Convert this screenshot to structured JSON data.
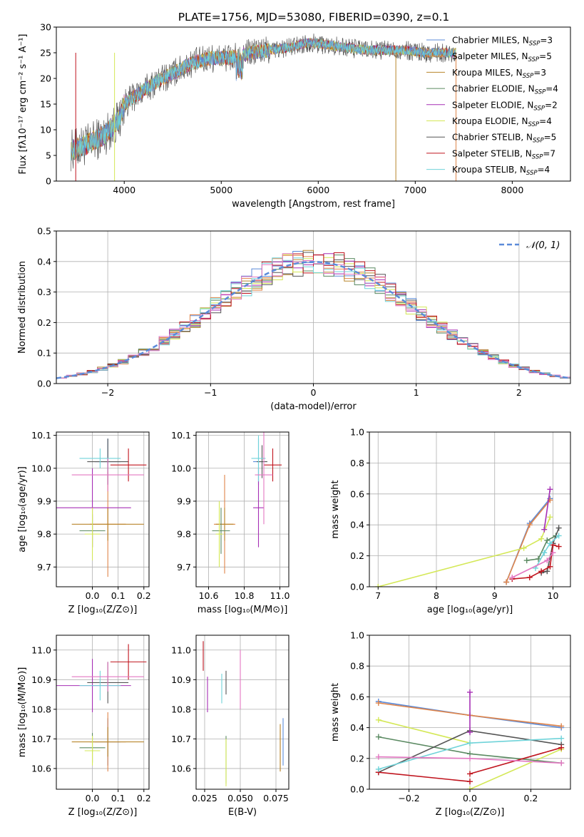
{
  "title": "PLATE=1756, MJD=53080, FIBERID=0390, z=0.1",
  "colors": {
    "chab_miles": "#5b8bd9",
    "salp_miles": "#e0854a",
    "krou_miles": "#b8862b",
    "chab_elodie": "#5b8a62",
    "salp_elodie": "#a62fb5",
    "krou_elodie": "#d4e857",
    "chab_stelib": "#555555",
    "salp_stelib": "#c0141e",
    "krou_stelib": "#6fd3d9",
    "pink": "#e377c2"
  },
  "chart_data": [
    {
      "id": "spectrum",
      "type": "line",
      "xlabel": "wavelength [Angstrom, rest frame]",
      "ylabel": "Flux [fλ10⁻¹⁷ erg cm⁻² s⁻¹ A⁻¹]",
      "xlim": [
        3300,
        8600
      ],
      "ylim": [
        0,
        30
      ],
      "xticks": [
        "4000",
        "5000",
        "6000",
        "7000",
        "8000"
      ],
      "yticks": [
        "0",
        "5",
        "10",
        "15",
        "20",
        "25",
        "30"
      ],
      "continuum": [
        [
          3450,
          6
        ],
        [
          3600,
          7
        ],
        [
          3800,
          9
        ],
        [
          3950,
          12
        ],
        [
          4000,
          15
        ],
        [
          4150,
          17
        ],
        [
          4300,
          19
        ],
        [
          4500,
          21
        ],
        [
          4700,
          23
        ],
        [
          4900,
          24
        ],
        [
          5100,
          24
        ],
        [
          5300,
          25
        ],
        [
          5500,
          25.5
        ],
        [
          5700,
          26
        ],
        [
          5900,
          27
        ],
        [
          6100,
          26.5
        ],
        [
          6300,
          26
        ],
        [
          6500,
          25.5
        ],
        [
          6700,
          25.5
        ],
        [
          6900,
          25.5
        ],
        [
          7100,
          25
        ],
        [
          7300,
          25
        ],
        [
          7420,
          25
        ]
      ],
      "legend": [
        {
          "label": "Chabrier MILES, N",
          "sub": "SSP",
          "tail": "=3",
          "color": "chab_miles"
        },
        {
          "label": "Salpeter MILES, N",
          "sub": "SSP",
          "tail": "=5",
          "color": "salp_miles"
        },
        {
          "label": "Kroupa MILES, N",
          "sub": "SSP",
          "tail": "=3",
          "color": "krou_miles"
        },
        {
          "label": "Chabrier ELODIE, N",
          "sub": "SSP",
          "tail": "=4",
          "color": "chab_elodie"
        },
        {
          "label": "Salpeter ELODIE, N",
          "sub": "SSP",
          "tail": "=2",
          "color": "salp_elodie"
        },
        {
          "label": "Kroupa ELODIE, N",
          "sub": "SSP",
          "tail": "=4",
          "color": "krou_elodie"
        },
        {
          "label": "Chabrier STELIB, N",
          "sub": "SSP",
          "tail": "=5",
          "color": "chab_stelib"
        },
        {
          "label": "Salpeter STELIB, N",
          "sub": "SSP",
          "tail": "=7",
          "color": "salp_stelib"
        },
        {
          "label": "Kroupa STELIB, N",
          "sub": "SSP",
          "tail": "=4",
          "color": "krou_stelib"
        }
      ]
    },
    {
      "id": "residuals",
      "type": "bar",
      "xlabel": "(data-model)/error",
      "ylabel": "Normed distribution",
      "xlim": [
        -2.5,
        2.5
      ],
      "ylim": [
        0,
        0.5
      ],
      "xticks": [
        "−2",
        "−1",
        "0",
        "1",
        "2"
      ],
      "yticks": [
        "0.0",
        "0.1",
        "0.2",
        "0.3",
        "0.4",
        "0.5"
      ],
      "legend": "𝒩(0, 1)",
      "grid": true
    },
    {
      "id": "age_vs_Z",
      "type": "scatter",
      "xlabel": "Z [log₁₀(Z/Z⊙)]",
      "ylabel": "age  [log₁₀(age/yr)]",
      "xlim": [
        -0.14,
        0.22
      ],
      "ylim": [
        9.64,
        10.11
      ],
      "xticks": [
        "0.0",
        "0.1",
        "0.2"
      ],
      "yticks": [
        "9.7",
        "9.8",
        "9.9",
        "10.0",
        "10.1"
      ],
      "points": [
        {
          "x": 0.06,
          "y": 10.02,
          "xerr": 0.05,
          "yerr": 0.07,
          "c": "chab_miles"
        },
        {
          "x": 0.06,
          "y": 9.83,
          "xerr": 0.07,
          "yerr": 0.16,
          "c": "salp_miles"
        },
        {
          "x": 0.06,
          "y": 9.83,
          "xerr": 0.14,
          "yerr": 0.05,
          "c": "krou_miles"
        },
        {
          "x": 0.0,
          "y": 9.81,
          "xerr": 0.05,
          "yerr": 0.05,
          "c": "chab_elodie"
        },
        {
          "x": 0.0,
          "y": 9.88,
          "xerr": 0.15,
          "yerr": 0.12,
          "c": "salp_elodie"
        },
        {
          "x": 0.0,
          "y": 9.8,
          "xerr": 0.03,
          "yerr": 0.08,
          "c": "krou_elodie"
        },
        {
          "x": 0.06,
          "y": 10.02,
          "xerr": 0.08,
          "yerr": 0.07,
          "c": "chab_stelib"
        },
        {
          "x": 0.14,
          "y": 10.01,
          "xerr": 0.07,
          "yerr": 0.05,
          "c": "salp_stelib"
        },
        {
          "x": 0.03,
          "y": 10.03,
          "xerr": 0.08,
          "yerr": 0.03,
          "c": "krou_stelib"
        },
        {
          "x": 0.06,
          "y": 9.98,
          "xerr": 0.14,
          "yerr": 0.05,
          "c": "pink"
        }
      ]
    },
    {
      "id": "age_vs_mass",
      "type": "scatter",
      "xlabel": "mass [log₁₀(M/M⊙)]",
      "ylabel": "",
      "xlim": [
        10.53,
        11.05
      ],
      "ylim": [
        9.64,
        10.11
      ],
      "xticks": [
        "10.6",
        "10.8",
        "11.0"
      ],
      "yticks": [
        "9.7",
        "9.8",
        "9.9",
        "10.0",
        "10.1"
      ],
      "points": [
        {
          "x": 10.88,
          "y": 10.02,
          "xerr": 0.03,
          "yerr": 0.07,
          "c": "chab_miles"
        },
        {
          "x": 10.69,
          "y": 9.83,
          "xerr": 0.06,
          "yerr": 0.15,
          "c": "salp_miles"
        },
        {
          "x": 10.69,
          "y": 9.83,
          "xerr": 0.05,
          "yerr": 0.05,
          "c": "krou_miles"
        },
        {
          "x": 10.67,
          "y": 9.81,
          "xerr": 0.05,
          "yerr": 0.07,
          "c": "chab_elodie"
        },
        {
          "x": 10.88,
          "y": 9.88,
          "xerr": 0.03,
          "yerr": 0.12,
          "c": "salp_elodie"
        },
        {
          "x": 10.66,
          "y": 9.8,
          "xerr": 0.02,
          "yerr": 0.1,
          "c": "krou_elodie"
        },
        {
          "x": 10.9,
          "y": 10.02,
          "xerr": 0.03,
          "yerr": 0.05,
          "c": "chab_stelib"
        },
        {
          "x": 10.96,
          "y": 10.01,
          "xerr": 0.05,
          "yerr": 0.05,
          "c": "salp_stelib"
        },
        {
          "x": 10.88,
          "y": 10.03,
          "xerr": 0.04,
          "yerr": 0.07,
          "c": "krou_stelib"
        },
        {
          "x": 10.91,
          "y": 9.98,
          "xerr": 0.05,
          "yerr": 0.15,
          "c": "pink"
        }
      ]
    },
    {
      "id": "mass_vs_Z",
      "type": "scatter",
      "xlabel": "Z [log₁₀(Z/Z⊙)]",
      "ylabel": "mass [log₁₀(M/M⊙)]",
      "xlim": [
        -0.14,
        0.22
      ],
      "ylim": [
        10.53,
        11.05
      ],
      "xticks": [
        "0.0",
        "0.1",
        "0.2"
      ],
      "yticks": [
        "10.6",
        "10.7",
        "10.8",
        "10.9",
        "11.0"
      ],
      "points": [
        {
          "x": 0.06,
          "y": 10.69,
          "xerr": 0.05,
          "yerr": 0.08,
          "c": "chab_miles"
        },
        {
          "x": 0.06,
          "y": 10.69,
          "xerr": 0.07,
          "yerr": 0.1,
          "c": "salp_miles"
        },
        {
          "x": 0.06,
          "y": 10.69,
          "xerr": 0.14,
          "yerr": 0.05,
          "c": "krou_miles"
        },
        {
          "x": 0.0,
          "y": 10.67,
          "xerr": 0.05,
          "yerr": 0.05,
          "c": "chab_elodie"
        },
        {
          "x": 0.0,
          "y": 10.88,
          "xerr": 0.15,
          "yerr": 0.09,
          "c": "salp_elodie"
        },
        {
          "x": 0.0,
          "y": 10.66,
          "xerr": 0.03,
          "yerr": 0.05,
          "c": "krou_elodie"
        },
        {
          "x": 0.06,
          "y": 10.89,
          "xerr": 0.08,
          "yerr": 0.07,
          "c": "chab_stelib"
        },
        {
          "x": 0.14,
          "y": 10.96,
          "xerr": 0.07,
          "yerr": 0.06,
          "c": "salp_stelib"
        },
        {
          "x": 0.03,
          "y": 10.88,
          "xerr": 0.08,
          "yerr": 0.05,
          "c": "krou_stelib"
        },
        {
          "x": 0.06,
          "y": 10.91,
          "xerr": 0.14,
          "yerr": 0.05,
          "c": "pink"
        }
      ]
    },
    {
      "id": "mass_vs_ebv",
      "type": "scatter",
      "xlabel": "E(B-V)",
      "ylabel": "",
      "xlim": [
        0.019,
        0.084
      ],
      "ylim": [
        10.53,
        11.05
      ],
      "xticks": [
        "0.025",
        "0.050",
        "0.075"
      ],
      "yticks": [
        "10.6",
        "10.7",
        "10.8",
        "10.9",
        "11.0"
      ],
      "points": [
        {
          "x": 0.08,
          "y": 10.69,
          "yerr": 0.08,
          "c": "chab_miles"
        },
        {
          "x": 0.078,
          "y": 10.66,
          "yerr": 0.07,
          "c": "salp_miles"
        },
        {
          "x": 0.078,
          "y": 10.67,
          "yerr": 0.08,
          "c": "krou_miles"
        },
        {
          "x": 0.04,
          "y": 10.63,
          "yerr": 0.08,
          "c": "chab_elodie"
        },
        {
          "x": 0.027,
          "y": 10.85,
          "yerr": 0.06,
          "c": "salp_elodie"
        },
        {
          "x": 0.04,
          "y": 10.62,
          "yerr": 0.08,
          "c": "krou_elodie"
        },
        {
          "x": 0.04,
          "y": 10.89,
          "yerr": 0.04,
          "c": "chab_stelib"
        },
        {
          "x": 0.024,
          "y": 10.98,
          "yerr": 0.05,
          "c": "salp_stelib"
        },
        {
          "x": 0.037,
          "y": 10.87,
          "yerr": 0.05,
          "c": "krou_stelib"
        },
        {
          "x": 0.05,
          "y": 10.9,
          "yerr": 0.1,
          "c": "pink"
        }
      ]
    },
    {
      "id": "weight_vs_age",
      "type": "line",
      "xlabel": "age  [log₁₀(age/yr)]",
      "ylabel": "mass weight",
      "xlim": [
        6.85,
        10.3
      ],
      "ylim": [
        0,
        1.0
      ],
      "xticks": [
        "7",
        "8",
        "9",
        "10"
      ],
      "yticks": [
        "0.0",
        "0.2",
        "0.4",
        "0.6",
        "0.8",
        "1.0"
      ],
      "series": [
        {
          "c": "chab_miles",
          "pts": [
            [
              9.2,
              0.03
            ],
            [
              9.6,
              0.41
            ],
            [
              9.95,
              0.57
            ]
          ]
        },
        {
          "c": "salp_miles",
          "pts": [
            [
              9.2,
              0.03
            ],
            [
              9.6,
              0.4
            ],
            [
              9.95,
              0.56
            ]
          ]
        },
        {
          "c": "krou_elodie",
          "pts": [
            [
              7.0,
              0.0
            ],
            [
              9.5,
              0.25
            ],
            [
              9.8,
              0.31
            ],
            [
              9.95,
              0.45
            ]
          ]
        },
        {
          "c": "salp_elodie",
          "pts": [
            [
              9.85,
              0.37
            ],
            [
              9.95,
              0.63
            ]
          ]
        },
        {
          "c": "chab_elodie",
          "pts": [
            [
              9.55,
              0.17
            ],
            [
              9.75,
              0.18
            ],
            [
              9.9,
              0.3
            ],
            [
              10.05,
              0.33
            ]
          ]
        },
        {
          "c": "chab_stelib",
          "pts": [
            [
              9.8,
              0.09
            ],
            [
              9.9,
              0.1
            ],
            [
              10.0,
              0.28
            ],
            [
              10.1,
              0.38
            ]
          ]
        },
        {
          "c": "salp_stelib",
          "pts": [
            [
              9.3,
              0.05
            ],
            [
              9.6,
              0.06
            ],
            [
              9.8,
              0.1
            ],
            [
              9.95,
              0.13
            ],
            [
              10.0,
              0.27
            ],
            [
              10.1,
              0.26
            ]
          ]
        },
        {
          "c": "krou_stelib",
          "pts": [
            [
              9.7,
              0.12
            ],
            [
              9.85,
              0.22
            ],
            [
              9.95,
              0.28
            ],
            [
              10.1,
              0.33
            ]
          ]
        },
        {
          "c": "pink",
          "pts": [
            [
              9.3,
              0.06
            ],
            [
              9.9,
              0.17
            ],
            [
              10.0,
              0.22
            ]
          ]
        }
      ]
    },
    {
      "id": "weight_vs_Z",
      "type": "line",
      "xlabel": "Z [log₁₀(Z/Z⊙)]",
      "ylabel": "mass weight",
      "xlim": [
        -0.33,
        0.33
      ],
      "ylim": [
        0,
        1.0
      ],
      "xticks": [
        "−0.2",
        "0.0",
        "0.2"
      ],
      "yticks": [
        "0.0",
        "0.2",
        "0.4",
        "0.6",
        "0.8",
        "1.0"
      ],
      "series": [
        {
          "c": "chab_miles",
          "pts": [
            [
              -0.3,
              0.57
            ],
            [
              0.0,
              0.48
            ],
            [
              0.3,
              0.4
            ]
          ]
        },
        {
          "c": "salp_miles",
          "pts": [
            [
              -0.3,
              0.56
            ],
            [
              0.0,
              0.48
            ],
            [
              0.3,
              0.41
            ]
          ]
        },
        {
          "c": "krou_elodie",
          "pts": [
            [
              -0.3,
              0.45
            ],
            [
              0.0,
              0.3
            ]
          ]
        },
        {
          "c": "krou_elodie",
          "pts": [
            [
              0.0,
              0.0
            ],
            [
              0.3,
              0.26
            ]
          ]
        },
        {
          "c": "chab_elodie",
          "pts": [
            [
              -0.3,
              0.34
            ],
            [
              0.0,
              0.23
            ],
            [
              0.3,
              0.17
            ]
          ]
        },
        {
          "c": "chab_stelib",
          "pts": [
            [
              -0.3,
              0.11
            ],
            [
              0.0,
              0.38
            ],
            [
              0.3,
              0.29
            ]
          ]
        },
        {
          "c": "salp_stelib",
          "pts": [
            [
              -0.3,
              0.11
            ],
            [
              0.0,
              0.05
            ]
          ]
        },
        {
          "c": "salp_stelib",
          "pts": [
            [
              0.0,
              0.1
            ],
            [
              0.3,
              0.27
            ]
          ]
        },
        {
          "c": "salp_elodie",
          "pts": [
            [
              0.0,
              0.63
            ],
            [
              0.0,
              0.37
            ]
          ]
        },
        {
          "c": "krou_stelib",
          "pts": [
            [
              -0.3,
              0.13
            ],
            [
              0.0,
              0.3
            ],
            [
              0.3,
              0.33
            ]
          ]
        },
        {
          "c": "pink",
          "pts": [
            [
              -0.3,
              0.21
            ],
            [
              0.0,
              0.2
            ],
            [
              0.3,
              0.17
            ]
          ]
        }
      ]
    }
  ]
}
